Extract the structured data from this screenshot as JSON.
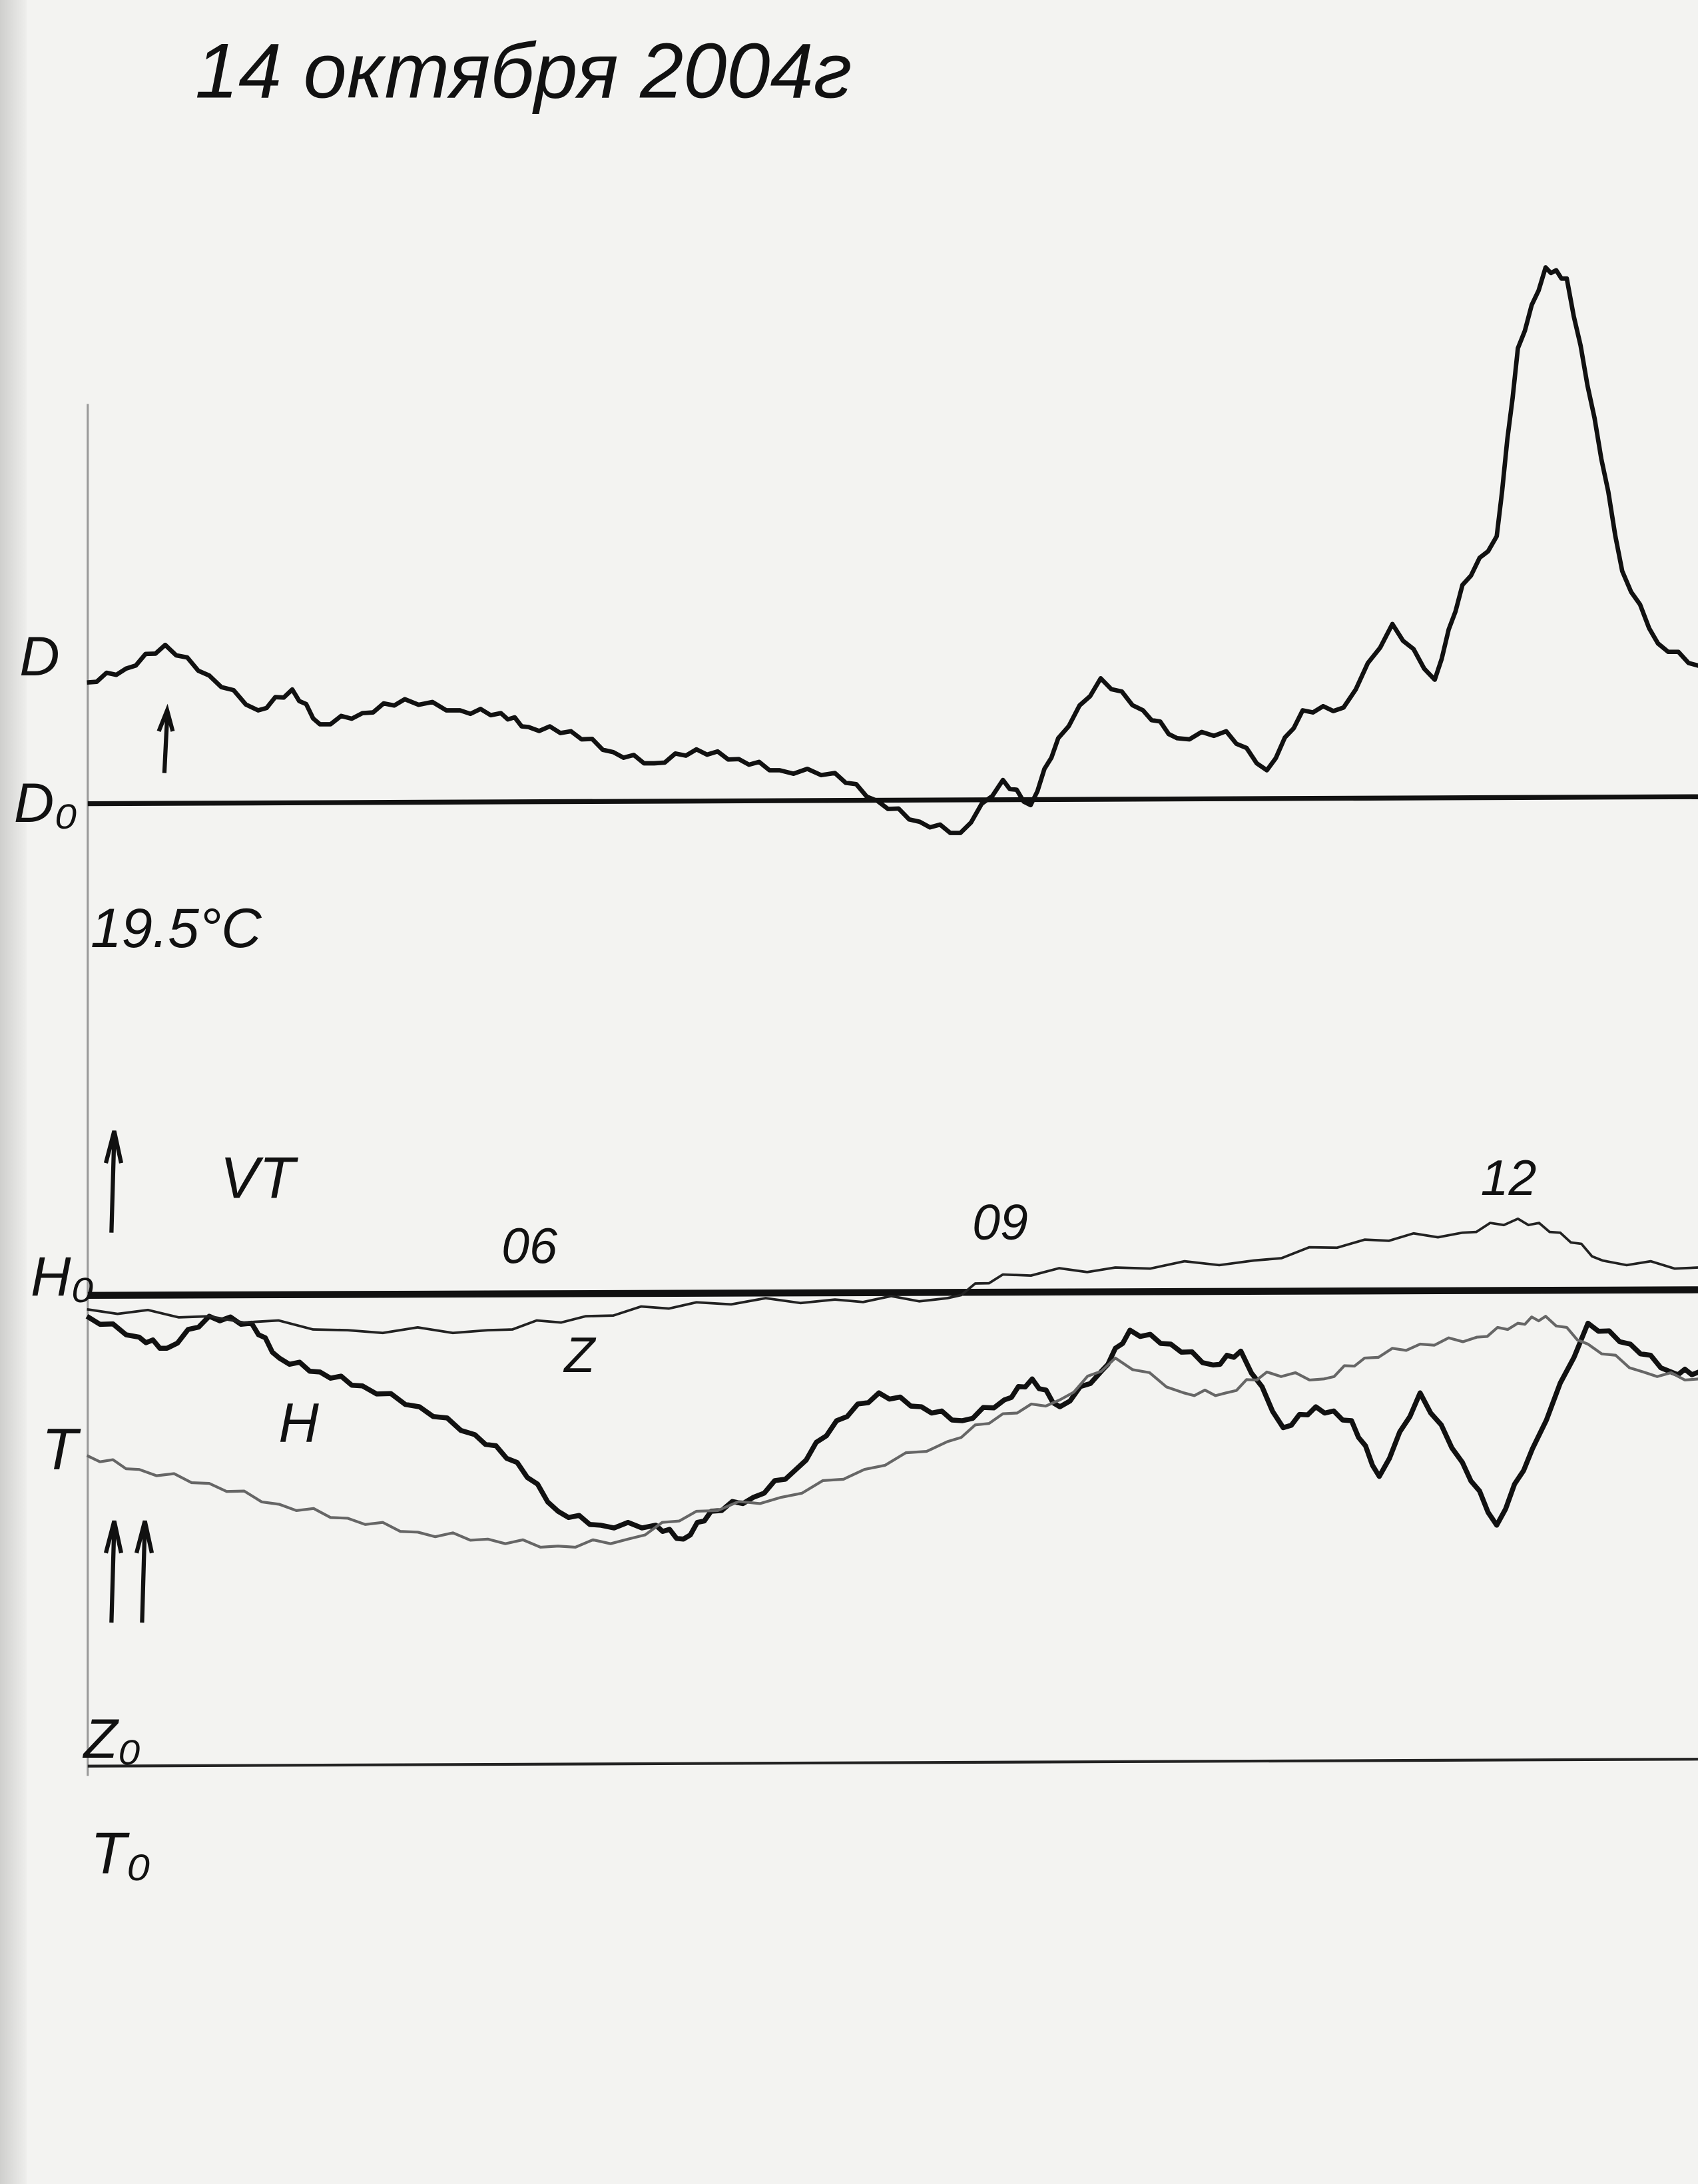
{
  "title": "14 октября 2004г",
  "colors": {
    "paper": "#f3f3f1",
    "ink": "#111111",
    "t_trace": "#666666"
  },
  "chart_data": {
    "type": "line",
    "title": "14 октября 2004г",
    "xlabel": "",
    "ylabel": "",
    "x_ticks": [
      "06",
      "09",
      "12"
    ],
    "x_tick_values": [
      6,
      9,
      12
    ],
    "xlim": [
      3.26,
      13.15
    ],
    "grid": false,
    "annotations": {
      "d_label": "D",
      "d0_label": "D₀",
      "temperature": "19.5°C",
      "vt_label": "VT",
      "h0_label": "H₀",
      "z_label": "Z",
      "h_label": "H",
      "t_label": "T",
      "z0_label": "Z₀",
      "t0_label": "T₀"
    },
    "series": [
      {
        "name": "D",
        "baseline": "D₀",
        "x": [
          3.26,
          3.5,
          3.74,
          4.01,
          4.31,
          4.52,
          4.69,
          4.95,
          5.21,
          5.55,
          5.8,
          5.97,
          6.23,
          6.49,
          6.74,
          7.0,
          7.26,
          7.51,
          7.85,
          8.11,
          8.37,
          8.62,
          8.88,
          9.05,
          9.22,
          9.48,
          9.74,
          9.95,
          10.25,
          10.5,
          10.72,
          10.97,
          11.27,
          11.53,
          11.7,
          11.91,
          12.04,
          12.21,
          12.34,
          12.51,
          12.68,
          12.9,
          13.15
        ],
        "y": [
          8.7,
          9.7,
          11.4,
          9.2,
          6.7,
          8.2,
          5.7,
          6.5,
          7.5,
          6.7,
          6.5,
          5.5,
          5.2,
          3.7,
          2.9,
          3.9,
          3.2,
          2.4,
          2.2,
          0.2,
          -1.3,
          -2.1,
          1.7,
          -0.1,
          4.7,
          9.0,
          6.7,
          4.7,
          5.2,
          2.4,
          6.7,
          6.9,
          12.9,
          8.9,
          15.7,
          19.2,
          32.7,
          38.5,
          37.7,
          27.7,
          16.7,
          11.5,
          9.9
        ]
      },
      {
        "name": "H",
        "baseline": "H₀",
        "x": [
          3.26,
          3.58,
          3.75,
          4.01,
          4.27,
          4.44,
          4.69,
          4.95,
          5.3,
          5.64,
          5.9,
          6.15,
          6.41,
          6.75,
          6.92,
          7.09,
          7.35,
          7.61,
          7.86,
          8.12,
          8.38,
          8.63,
          8.89,
          9.06,
          9.23,
          9.48,
          9.66,
          9.91,
          10.17,
          10.34,
          10.6,
          10.8,
          11.02,
          11.19,
          11.44,
          11.7,
          11.91,
          12.13,
          12.47,
          12.73,
          12.98,
          13.15
        ],
        "y": [
          -1.5,
          -3.0,
          -3.8,
          -1.5,
          -2.0,
          -4.5,
          -5.5,
          -6.5,
          -8.0,
          -10.0,
          -12.0,
          -15.5,
          -16.5,
          -16.5,
          -17.5,
          -15.5,
          -14.5,
          -12.5,
          -9.0,
          -7.0,
          -8.0,
          -9.0,
          -7.5,
          -6.0,
          -8.0,
          -5.5,
          -2.5,
          -3.5,
          -5.0,
          -4.0,
          -9.5,
          -8.0,
          -9.0,
          -13.0,
          -7.0,
          -12.0,
          -16.5,
          -11.0,
          -2.0,
          -3.5,
          -5.5,
          -5.5
        ]
      },
      {
        "name": "Z",
        "baseline": "Z₀",
        "x": [
          3.26,
          4.01,
          4.86,
          5.72,
          6.32,
          7.0,
          7.85,
          8.54,
          8.88,
          9.57,
          10.42,
          11.1,
          11.7,
          12.04,
          12.3,
          12.56,
          13.15
        ],
        "y": [
          32.8,
          32.3,
          31.3,
          31.3,
          32.3,
          33.3,
          33.5,
          33.6,
          35.3,
          35.8,
          36.3,
          37.8,
          38.3,
          39.3,
          38.3,
          36.3,
          35.8
        ]
      },
      {
        "name": "T",
        "baseline": "T₀",
        "x": [
          3.26,
          3.58,
          4.01,
          4.44,
          4.86,
          5.29,
          5.72,
          6.15,
          6.58,
          7.0,
          7.52,
          8.03,
          8.54,
          8.88,
          9.23,
          9.57,
          9.99,
          10.25,
          10.5,
          10.85,
          11.1,
          11.44,
          11.79,
          12.04,
          12.21,
          12.47,
          12.81,
          13.15
        ],
        "y": [
          22.3,
          21.3,
          20.3,
          18.8,
          17.8,
          16.8,
          16.3,
          15.8,
          16.3,
          18.3,
          19.3,
          21.3,
          23.3,
          25.3,
          26.3,
          29.3,
          26.8,
          26.8,
          28.3,
          27.8,
          29.3,
          30.3,
          30.8,
          31.8,
          32.3,
          30.3,
          28.3,
          27.8
        ]
      }
    ]
  }
}
